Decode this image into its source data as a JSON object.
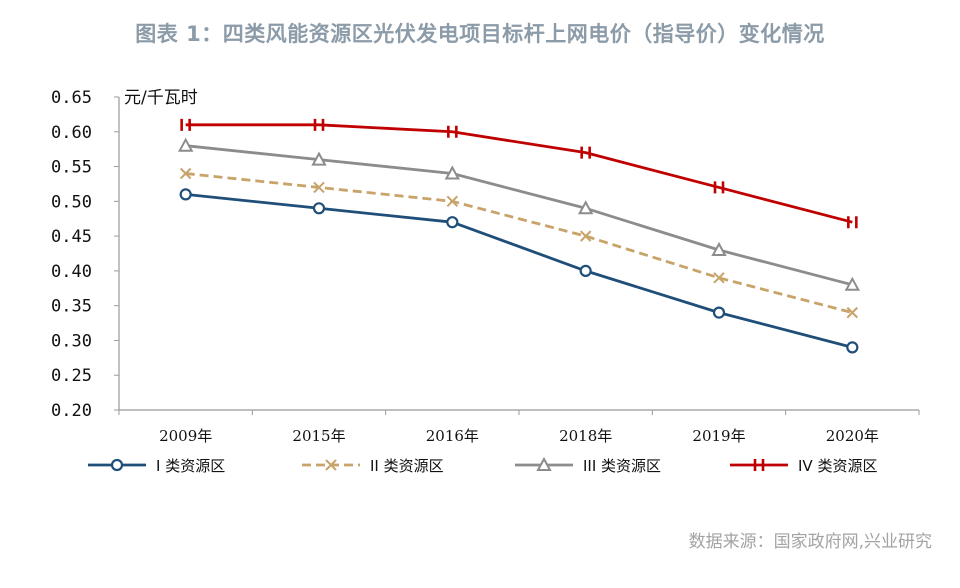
{
  "chart_data": {
    "type": "line",
    "title": "图表 1：四类风能资源区光伏发电项目标杆上网电价（指导价）变化情况",
    "ylabel": "元/千瓦时",
    "xlabel": "",
    "categories": [
      "2009年",
      "2015年",
      "2016年",
      "2018年",
      "2019年",
      "2020年"
    ],
    "ylim": [
      0.2,
      0.65
    ],
    "yticks": [
      "0.65",
      "0.60",
      "0.55",
      "0.50",
      "0.45",
      "0.40",
      "0.35",
      "0.30",
      "0.25",
      "0.20"
    ],
    "grid": false,
    "legend_position": "bottom",
    "series": [
      {
        "name": "I 类资源区",
        "values": [
          0.51,
          0.49,
          0.47,
          0.4,
          0.34,
          0.29
        ],
        "color": "#1f4e79",
        "line_style": "solid",
        "marker": "circle"
      },
      {
        "name": "II 类资源区",
        "values": [
          0.54,
          0.52,
          0.5,
          0.45,
          0.39,
          0.34
        ],
        "color": "#c8a36a",
        "line_style": "dashed",
        "marker": "x"
      },
      {
        "name": "III 类资源区",
        "values": [
          0.58,
          0.56,
          0.54,
          0.49,
          0.43,
          0.38
        ],
        "color": "#8c8c8c",
        "line_style": "solid",
        "marker": "triangle"
      },
      {
        "name": "IV 类资源区",
        "values": [
          0.61,
          0.61,
          0.6,
          0.57,
          0.52,
          0.47
        ],
        "color": "#c00000",
        "line_style": "solid",
        "marker": "bar"
      }
    ]
  },
  "source": "数据来源：国家政府网,兴业研究"
}
